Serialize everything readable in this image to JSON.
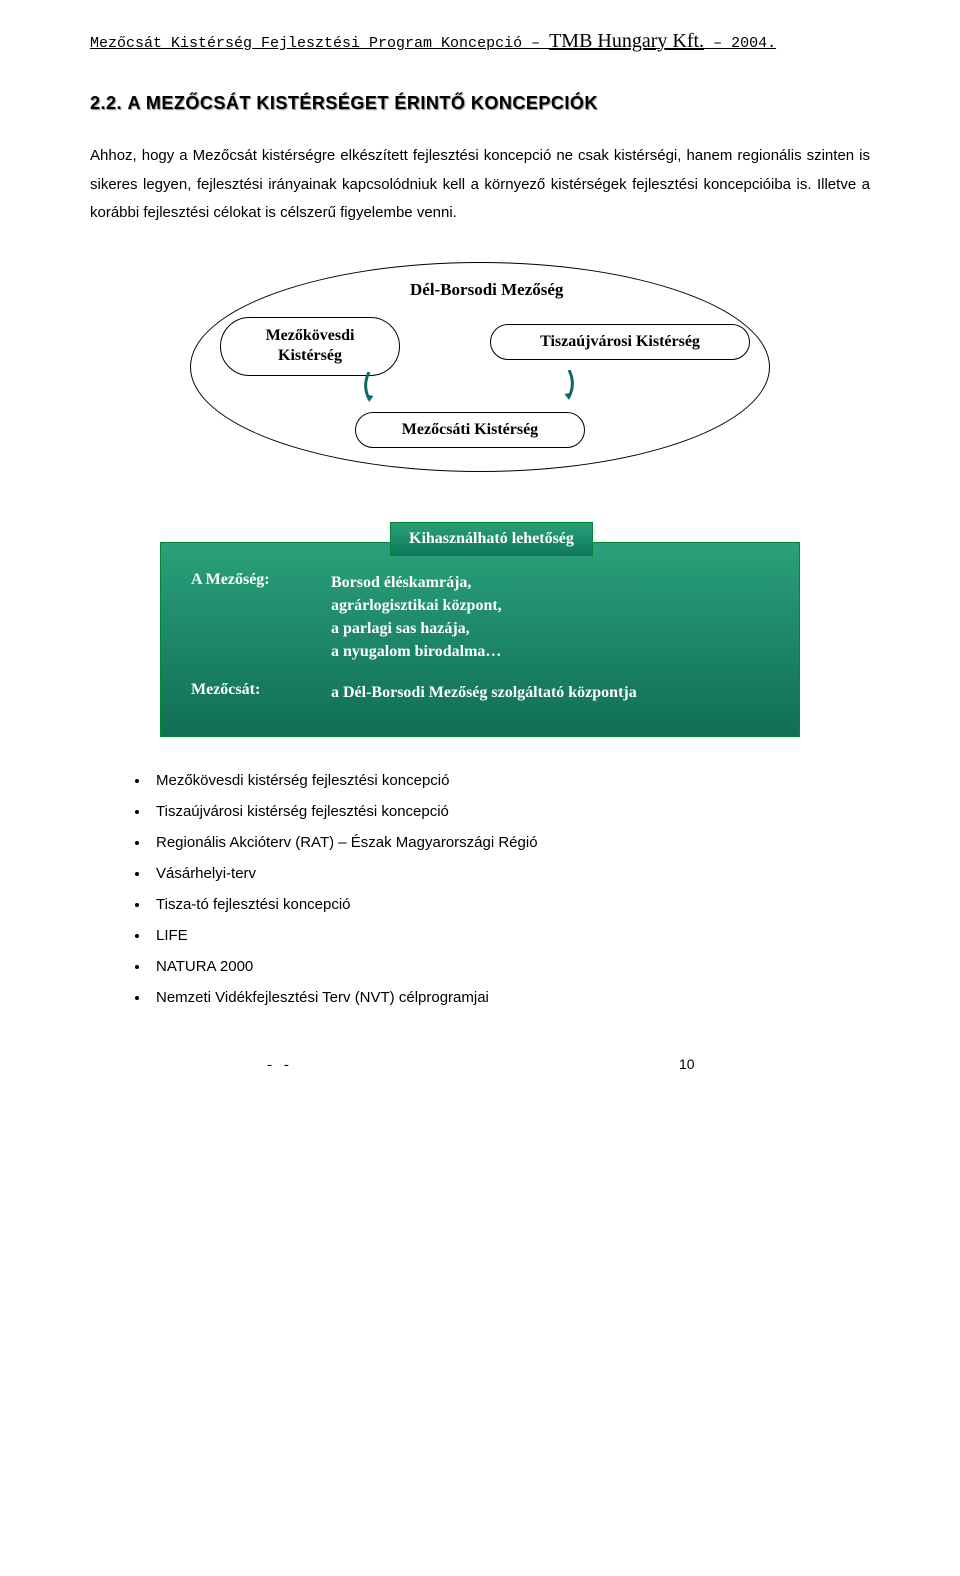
{
  "header": {
    "doc_title": "Mezőcsát Kistérség Fejlesztési Program Koncepció – ",
    "brand": "TMB Hungary Kft.",
    "year_suffix": " – 2004."
  },
  "section": {
    "number": "2.2.",
    "title": "A MEZŐCSÁT KISTÉRSÉGET ÉRINTŐ KONCEPCIÓK"
  },
  "paragraph": "Ahhoz, hogy a Mezőcsát kistérségre elkészített fejlesztési koncepció ne csak kistérségi, hanem regionális szinten is sikeres legyen, fejlesztési irányainak kapcsolódniuk kell a környező kistérségek fejlesztési koncepcióiba is. Illetve a korábbi fejlesztési célokat is célszerű figyelembe venni.",
  "diagram": {
    "type": "flowchart",
    "big_label": "Dél-Borsodi Mezőség",
    "node_mezokovesdi": "Mezőkövesdi\nKistérség",
    "node_tiszaujvarosi": "Tiszaújvárosi Kistérség",
    "node_mezocsati": "Mezőcsáti Kistérség",
    "colors": {
      "border": "#000000",
      "fill": "#ffffff",
      "text": "#000000"
    }
  },
  "opportunity": {
    "tab_label": "Kihasználható lehetőség",
    "rows": [
      {
        "label": "A Mezőség:",
        "lines": [
          "Borsod éléskamrája,",
          "agrárlogisztikai központ,",
          "a parlagi sas hazája,",
          "a nyugalom birodalma…"
        ]
      },
      {
        "label": "Mezőcsát:",
        "lines": [
          "a Dél-Borsodi Mezőség szolgáltató központja"
        ]
      }
    ],
    "colors": {
      "bg_top": "#2aa07a",
      "bg_bottom": "#106e55",
      "border": "#008833",
      "text": "#ffffff"
    }
  },
  "bullets": [
    "Mezőkövesdi kistérség fejlesztési koncepció",
    "Tiszaújvárosi kistérség fejlesztési koncepció",
    "Regionális Akcióterv (RAT) – Észak Magyarországi Régió",
    "Vásárhelyi-terv",
    "Tisza-tó fejlesztési koncepció",
    "LIFE",
    "NATURA 2000",
    "Nemzeti Vidékfejlesztési Terv (NVT) célprogramjai"
  ],
  "footer": {
    "center": "- -",
    "page": "10"
  }
}
